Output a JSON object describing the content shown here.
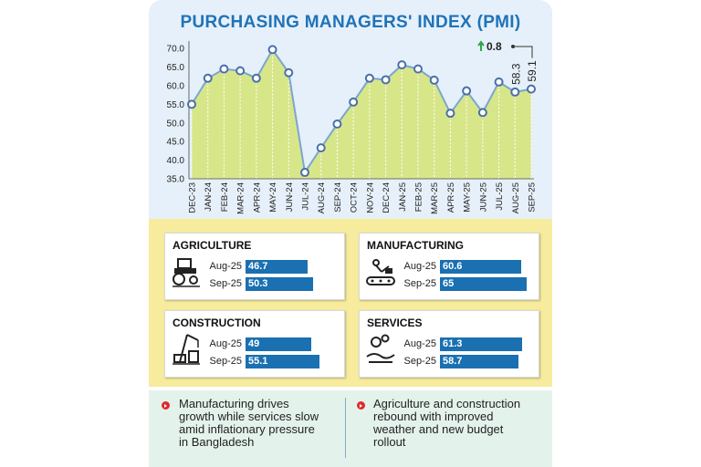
{
  "chart_data": {
    "type": "area",
    "title": "PURCHASING MANAGERS' INDEX (PMI)",
    "categories": [
      "DEC-23",
      "JAN-24",
      "FEB-24",
      "MAR-24",
      "APR-24",
      "MAY-24",
      "JUN-24",
      "JUL-24",
      "AUG-24",
      "SEP-24",
      "OCT-24",
      "NOV-24",
      "DEC-24",
      "JAN-25",
      "FEB-25",
      "MAR-25",
      "APR-25",
      "MAY-25",
      "JUN-25",
      "JUL-25",
      "AUG-25",
      "SEP-25"
    ],
    "values": [
      55.0,
      62.0,
      64.5,
      64.0,
      62.0,
      69.7,
      63.5,
      36.7,
      43.3,
      49.7,
      55.6,
      62.0,
      61.6,
      65.6,
      64.5,
      61.5,
      52.6,
      58.6,
      52.8,
      61.0,
      58.3,
      59.1
    ],
    "yticks": [
      "35.0",
      "40.0",
      "45.0",
      "50.0",
      "55.0",
      "60.0",
      "65.0",
      "70.0"
    ],
    "ylim": [
      35,
      72
    ],
    "data_labels": {
      "AUG-25": "58.3",
      "SEP-25": "59.1"
    },
    "change_label": "0.8",
    "grid": "vertical",
    "colors": {
      "fill": "#d8e68a",
      "line": "#7aa6cf",
      "marker_fill": "#ffffff",
      "marker_stroke": "#4a6fa8",
      "change_arrow": "#2aa84a"
    }
  },
  "sectors": [
    {
      "name": "AGRICULTURE",
      "icon": "tractor-icon",
      "rows": [
        {
          "label": "Aug-25",
          "value": 46.7
        },
        {
          "label": "Sep-25",
          "value": 50.3
        }
      ]
    },
    {
      "name": "MANUFACTURING",
      "icon": "factory-robot-icon",
      "rows": [
        {
          "label": "Aug-25",
          "value": 60.6
        },
        {
          "label": "Sep-25",
          "value": 65.0
        }
      ]
    },
    {
      "name": "CONSTRUCTION",
      "icon": "crane-icon",
      "rows": [
        {
          "label": "Aug-25",
          "value": 49.0
        },
        {
          "label": "Sep-25",
          "value": 55.1
        }
      ]
    },
    {
      "name": "SERVICES",
      "icon": "handshake-gears-icon",
      "rows": [
        {
          "label": "Aug-25",
          "value": 61.3
        },
        {
          "label": "Sep-25",
          "value": 58.7
        }
      ]
    }
  ],
  "notes": {
    "left": [
      "Manufacturing drives",
      "growth while services slow",
      "amid inflationary pressure",
      "in Bangladesh"
    ],
    "right": [
      "Agriculture and construction",
      "rebound with improved",
      "weather and new budget",
      "rollout"
    ]
  },
  "colors": {
    "title": "#1f73b8",
    "bar": "#1a70b0",
    "yellow_band": "#f7ec9e",
    "bottom_band": "#e4f2ec",
    "bullet": "#e02a2a"
  }
}
